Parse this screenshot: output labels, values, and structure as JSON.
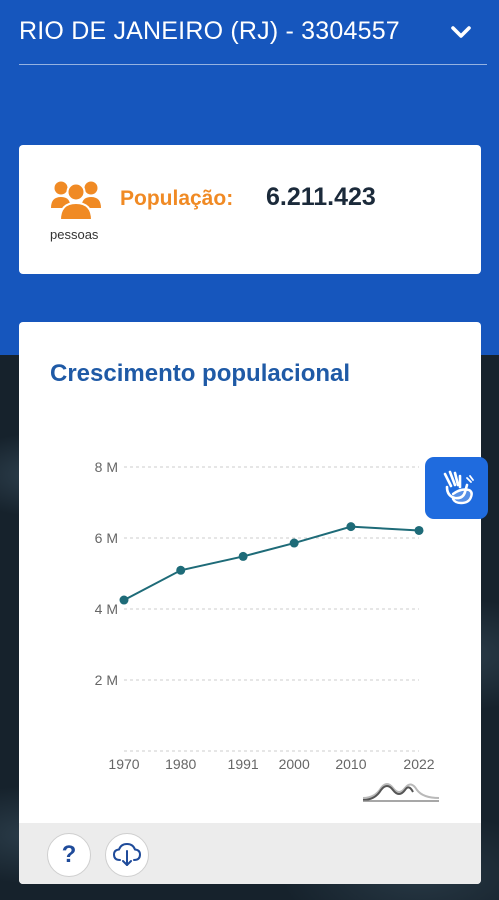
{
  "header": {
    "title": "RIO DE JANEIRO (RJ) - 3304557",
    "chevron_icon": "chevron-down-icon"
  },
  "population": {
    "icon": "people-icon",
    "unit": "pessoas",
    "label": "População:",
    "value": "6.211.423",
    "accent_color": "#f08a24"
  },
  "growth_chart": {
    "title": "Crescimento populacional"
  },
  "chart_data": {
    "type": "line",
    "title": "Crescimento populacional",
    "xlabel": "",
    "ylabel": "",
    "categories": [
      "1970",
      "1980",
      "1991",
      "2000",
      "2010",
      "2022"
    ],
    "x": [
      1970,
      1980,
      1991,
      2000,
      2010,
      2022
    ],
    "series": [
      {
        "values": [
          4251918,
          5090723,
          5480768,
          5857904,
          6320446,
          6211423
        ],
        "color": "#1e6b78"
      }
    ],
    "y_ticks": [
      {
        "value": 2000000,
        "label": "2 M"
      },
      {
        "value": 4000000,
        "label": "4 M"
      },
      {
        "value": 6000000,
        "label": "6 M"
      },
      {
        "value": 8000000,
        "label": "8 M"
      }
    ],
    "ylim": [
      0,
      8000000
    ],
    "grid": "horizontal dashed",
    "legend": "none"
  },
  "footer": {
    "help_label": "?",
    "help_icon": "help-icon",
    "download_icon": "cloud-download-icon"
  },
  "accessibility": {
    "icon": "sign-language-icon",
    "color": "#1f6bde"
  },
  "colors": {
    "header_bg": "#1656bd",
    "title_blue": "#1f5aa6"
  }
}
